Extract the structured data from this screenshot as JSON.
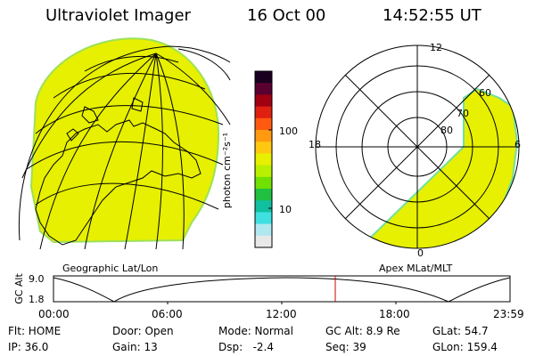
{
  "header": {
    "instrument": "Ultraviolet Imager",
    "date": "16 Oct 00",
    "time": "14:52:55 UT"
  },
  "geo_panel": {
    "label": "Geographic Lat/Lon"
  },
  "polar_panel": {
    "label": "Apex MLat/MLT",
    "mlt_labels": {
      "top": "12",
      "left": "18",
      "right": "6",
      "bottom": "0"
    },
    "lat_labels": [
      "60",
      "70",
      "80"
    ]
  },
  "colorbar": {
    "unit_label": "photon cm⁻²s⁻¹",
    "ticks": [
      "100",
      "10"
    ],
    "colors": [
      "#1a0020",
      "#5a0030",
      "#a00010",
      "#e02010",
      "#ff5a10",
      "#ff9a10",
      "#ffc810",
      "#e6f000",
      "#b8f000",
      "#70e000",
      "#20c040",
      "#10c0a0",
      "#40e0e0",
      "#b0e8f0",
      "#e8e8e8"
    ]
  },
  "timeline": {
    "ylabel": "GC Alt",
    "y_ticks": [
      "9.0",
      "1.8"
    ],
    "x_ticks": [
      "00:00",
      "06:00",
      "12:00",
      "18:00",
      "23:59"
    ],
    "marker_color": "#cc0000"
  },
  "status": {
    "row1": [
      "Flt: HOME",
      "Door: Open",
      "Mode: Normal",
      "GC Alt: 8.9 Re",
      "GLat:  54.7"
    ],
    "row2": [
      "IP: 36.0",
      "Gain: 13",
      "Dsp:   -2.4",
      "Seq: 39",
      "GLon: 159.4"
    ]
  },
  "colors": {
    "emission": "#e6f000",
    "emission_edge": "#b8f040"
  }
}
